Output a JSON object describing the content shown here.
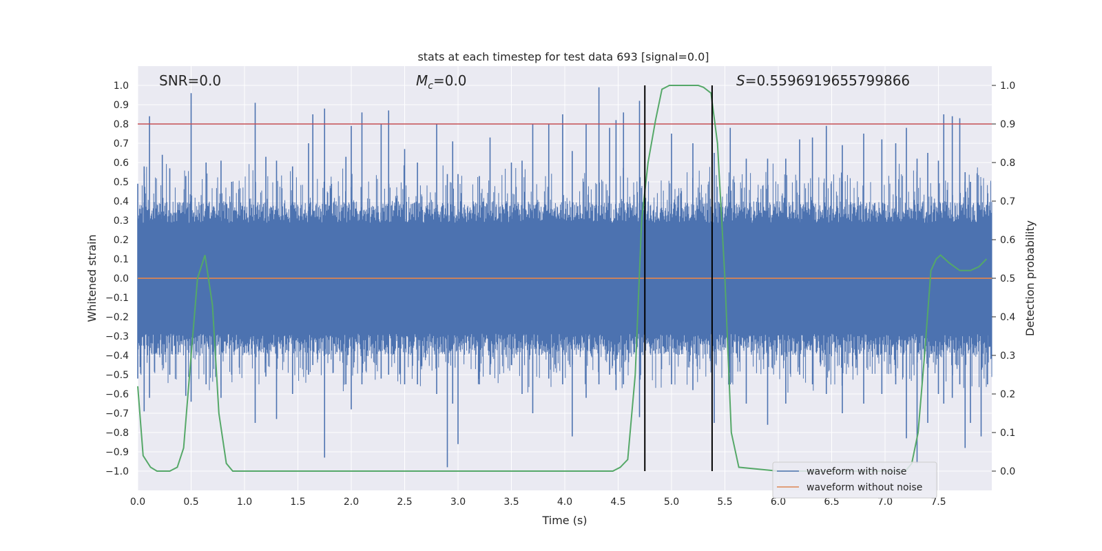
{
  "chart_data": {
    "type": "line",
    "title": "stats at each timestep for test data 693 [signal=0.0]",
    "xlabel": "Time (s)",
    "ylabel": "Whitened strain",
    "y2label": "Detection probability",
    "xlim": [
      0.0,
      8.0
    ],
    "ylim": [
      -1.1,
      1.1
    ],
    "y2lim": [
      -0.05,
      1.05
    ],
    "xticks": [
      0.0,
      0.5,
      1.0,
      1.5,
      2.0,
      2.5,
      3.0,
      3.5,
      4.0,
      4.5,
      5.0,
      5.5,
      6.0,
      6.5,
      7.0,
      7.5
    ],
    "xtick_labels": [
      "0.0",
      "0.5",
      "1.0",
      "1.5",
      "2.0",
      "2.5",
      "3.0",
      "3.5",
      "4.0",
      "4.5",
      "5.0",
      "5.5",
      "6.0",
      "6.5",
      "7.0",
      "7.5"
    ],
    "yticks": [
      1.0,
      0.9,
      0.8,
      0.7,
      0.6,
      0.5,
      0.4,
      0.3,
      0.2,
      0.1,
      0.0,
      -0.1,
      -0.2,
      -0.3,
      -0.4,
      -0.5,
      -0.6,
      -0.7,
      -0.8,
      -0.9,
      -1.0
    ],
    "ytick_labels": [
      "1.0",
      "0.9",
      "0.8",
      "0.7",
      "0.6",
      "0.5",
      "0.4",
      "0.3",
      "0.2",
      "0.1",
      "0.0",
      "−0.1",
      "−0.2",
      "−0.3",
      "−0.4",
      "−0.5",
      "−0.6",
      "−0.7",
      "−0.8",
      "−0.9",
      "−1.0"
    ],
    "y2ticks": [
      1.0,
      0.9,
      0.8,
      0.7,
      0.6,
      0.5,
      0.4,
      0.3,
      0.2,
      0.1,
      0.0
    ],
    "y2tick_labels": [
      "1.0",
      "0.9",
      "0.8",
      "0.7",
      "0.6",
      "0.5",
      "0.4",
      "0.3",
      "0.2",
      "0.1",
      "0.0"
    ],
    "grid": true,
    "annotations": {
      "snr": "SNR=0.0",
      "mc_symbol": "M",
      "mc_sub": "c",
      "mc_value": "=0.0",
      "s_symbol": "S",
      "s_value": "=0.5596919655799866"
    },
    "legend": {
      "position": "lower-right",
      "entries": [
        "waveform with noise",
        "waveform without noise"
      ]
    },
    "colors": {
      "noise": "#4c72b0",
      "clean": "#dd8452",
      "probability": "#55a868",
      "threshold": "#c44e52",
      "vline": "#000000",
      "plot_bg": "#eaeaf2",
      "grid": "#ffffff"
    },
    "threshold": 0.9,
    "vlines": [
      4.75,
      5.38
    ],
    "noise_series": {
      "name": "waveform with noise",
      "typical_amplitude": 0.4,
      "peaks": [
        [
          0.0,
          0.49,
          -0.52
        ],
        [
          0.06,
          0.58,
          -0.69
        ],
        [
          0.11,
          0.84,
          -0.62
        ],
        [
          0.23,
          0.64,
          -0.45
        ],
        [
          0.3,
          0.57,
          -0.5
        ],
        [
          0.45,
          0.53,
          -0.61
        ],
        [
          0.5,
          0.96,
          -0.64
        ],
        [
          0.64,
          0.6,
          -0.55
        ],
        [
          0.78,
          0.61,
          -0.62
        ],
        [
          0.88,
          0.5,
          -0.5
        ],
        [
          1.1,
          0.91,
          -0.75
        ],
        [
          1.2,
          0.63,
          -0.51
        ],
        [
          1.3,
          0.61,
          -0.73
        ],
        [
          1.45,
          0.58,
          -0.6
        ],
        [
          1.6,
          0.7,
          -0.5
        ],
        [
          1.64,
          0.85,
          -0.45
        ],
        [
          1.75,
          0.88,
          -0.93
        ],
        [
          1.95,
          0.63,
          -0.55
        ],
        [
          2.0,
          0.79,
          -0.68
        ],
        [
          2.1,
          0.86,
          -0.55
        ],
        [
          2.28,
          0.8,
          -0.52
        ],
        [
          2.35,
          0.87,
          -0.5
        ],
        [
          2.5,
          0.67,
          -0.55
        ],
        [
          2.62,
          0.6,
          -0.55
        ],
        [
          2.8,
          0.8,
          -0.6
        ],
        [
          2.9,
          0.54,
          -0.98
        ],
        [
          2.95,
          0.71,
          -0.65
        ],
        [
          3.0,
          0.54,
          -0.86
        ],
        [
          3.2,
          0.53,
          -0.55
        ],
        [
          3.3,
          0.73,
          -0.5
        ],
        [
          3.5,
          0.6,
          -0.45
        ],
        [
          3.6,
          0.61,
          -0.6
        ],
        [
          3.7,
          0.8,
          -0.7
        ],
        [
          3.85,
          0.8,
          -0.52
        ],
        [
          3.98,
          0.85,
          -0.55
        ],
        [
          4.07,
          0.66,
          -0.82
        ],
        [
          4.2,
          0.8,
          -0.62
        ],
        [
          4.32,
          0.99,
          -0.55
        ],
        [
          4.42,
          0.78,
          -0.5
        ],
        [
          4.48,
          0.82,
          -0.58
        ],
        [
          4.55,
          0.86,
          -0.55
        ],
        [
          4.7,
          0.92,
          -0.72
        ],
        [
          5.0,
          0.75,
          -0.55
        ],
        [
          5.2,
          0.7,
          -0.58
        ],
        [
          5.4,
          0.65,
          -0.75
        ],
        [
          5.55,
          0.78,
          -0.55
        ],
        [
          5.7,
          0.62,
          -0.65
        ],
        [
          5.9,
          0.62,
          -0.76
        ],
        [
          6.07,
          0.62,
          -0.65
        ],
        [
          6.2,
          0.72,
          -0.5
        ],
        [
          6.32,
          0.73,
          -0.55
        ],
        [
          6.45,
          0.79,
          -0.6
        ],
        [
          6.6,
          0.69,
          -0.7
        ],
        [
          6.8,
          0.75,
          -0.65
        ],
        [
          6.97,
          0.72,
          -0.6
        ],
        [
          7.1,
          0.7,
          -0.55
        ],
        [
          7.2,
          0.78,
          -0.83
        ],
        [
          7.3,
          0.62,
          -0.96
        ],
        [
          7.4,
          0.65,
          -0.75
        ],
        [
          7.5,
          0.61,
          -0.6
        ],
        [
          7.55,
          0.85,
          -0.65
        ],
        [
          7.63,
          0.84,
          -0.62
        ],
        [
          7.7,
          0.83,
          -0.55
        ],
        [
          7.75,
          0.55,
          -0.88
        ],
        [
          7.8,
          0.5,
          -0.75
        ],
        [
          7.9,
          0.48,
          -0.82
        ],
        [
          7.96,
          0.4,
          -0.55
        ]
      ]
    },
    "clean_series": {
      "name": "waveform without noise",
      "value": 0.0
    },
    "probability_series": {
      "name": "detection probability",
      "x": [
        0.0,
        0.05,
        0.12,
        0.18,
        0.25,
        0.3,
        0.37,
        0.43,
        0.5,
        0.56,
        0.63,
        0.7,
        0.76,
        0.83,
        0.89,
        1.5,
        3.0,
        4.0,
        4.45,
        4.52,
        4.59,
        4.66,
        4.72,
        4.78,
        4.85,
        4.91,
        4.98,
        5.1,
        5.25,
        5.3,
        5.37,
        5.43,
        5.5,
        5.56,
        5.63,
        6.0,
        7.0,
        7.19,
        7.25,
        7.31,
        7.37,
        7.43,
        7.48,
        7.52,
        7.6,
        7.7,
        7.8,
        7.88,
        7.95
      ],
      "y": [
        0.22,
        0.04,
        0.01,
        0.0,
        0.0,
        0.0,
        0.01,
        0.06,
        0.3,
        0.5,
        0.56,
        0.43,
        0.15,
        0.02,
        0.0,
        0.0,
        0.0,
        0.0,
        0.0,
        0.01,
        0.03,
        0.25,
        0.65,
        0.8,
        0.91,
        0.99,
        1.0,
        1.0,
        1.0,
        0.995,
        0.98,
        0.85,
        0.5,
        0.1,
        0.01,
        0.0,
        0.0,
        0.0,
        0.02,
        0.1,
        0.3,
        0.52,
        0.55,
        0.56,
        0.54,
        0.52,
        0.52,
        0.53,
        0.55
      ]
    }
  }
}
